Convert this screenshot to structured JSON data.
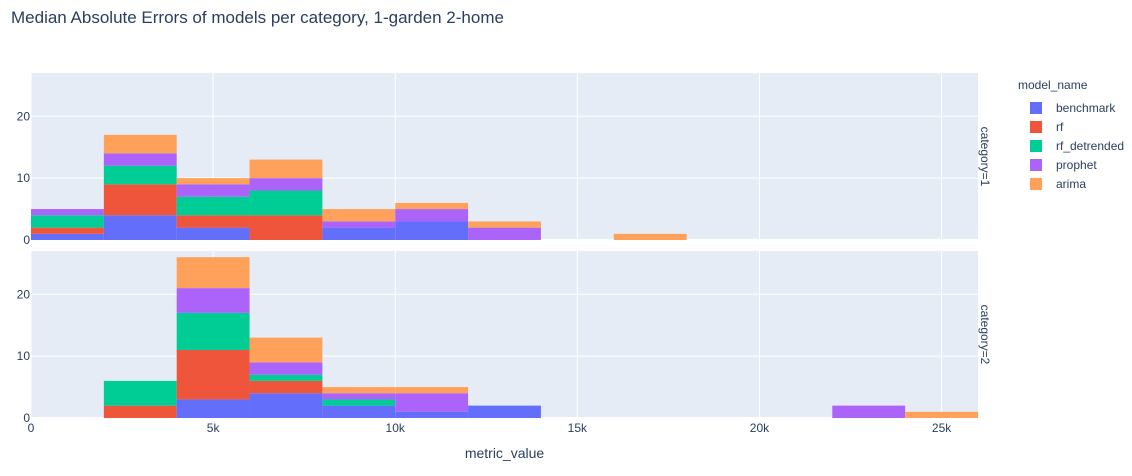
{
  "chart_data": {
    "type": "bar",
    "barmode": "stack",
    "title": "Median Absolute Errors of models per category, 1-garden 2-home",
    "xlabel": "metric_value",
    "ylabel": "",
    "legend_title": "model_name",
    "legend_position": "right",
    "grid": true,
    "bin_size": 2000,
    "xlim": [
      0,
      26000
    ],
    "ylim": [
      0,
      27
    ],
    "x_ticks": [
      {
        "value": 0,
        "label": "0"
      },
      {
        "value": 5000,
        "label": "5k"
      },
      {
        "value": 10000,
        "label": "10k"
      },
      {
        "value": 15000,
        "label": "15k"
      },
      {
        "value": 20000,
        "label": "20k"
      },
      {
        "value": 25000,
        "label": "25k"
      }
    ],
    "y_ticks": [
      {
        "value": 0,
        "label": "0"
      },
      {
        "value": 10,
        "label": "10"
      },
      {
        "value": 20,
        "label": "20"
      }
    ],
    "series": [
      {
        "name": "benchmark",
        "color": "#636efa"
      },
      {
        "name": "rf",
        "color": "#EF553B"
      },
      {
        "name": "rf_detrended",
        "color": "#00cc96"
      },
      {
        "name": "prophet",
        "color": "#ab63fa"
      },
      {
        "name": "arima",
        "color": "#FFA15A"
      }
    ],
    "facets": [
      {
        "label": "category=1",
        "bins": [
          {
            "x0": 0,
            "x1": 2000,
            "counts": [
              1,
              1,
              2,
              1,
              0
            ]
          },
          {
            "x0": 2000,
            "x1": 4000,
            "counts": [
              4,
              5,
              3,
              2,
              3
            ]
          },
          {
            "x0": 4000,
            "x1": 6000,
            "counts": [
              2,
              2,
              3,
              2,
              1
            ]
          },
          {
            "x0": 6000,
            "x1": 8000,
            "counts": [
              0,
              4,
              4,
              2,
              3
            ]
          },
          {
            "x0": 8000,
            "x1": 10000,
            "counts": [
              2,
              0,
              0,
              1,
              2
            ]
          },
          {
            "x0": 10000,
            "x1": 12000,
            "counts": [
              3,
              0,
              0,
              2,
              1
            ]
          },
          {
            "x0": 12000,
            "x1": 14000,
            "counts": [
              0,
              0,
              0,
              2,
              1
            ]
          },
          {
            "x0": 16000,
            "x1": 18000,
            "counts": [
              0,
              0,
              0,
              0,
              1
            ]
          }
        ]
      },
      {
        "label": "category=2",
        "bins": [
          {
            "x0": 2000,
            "x1": 4000,
            "counts": [
              0,
              2,
              4,
              0,
              0
            ]
          },
          {
            "x0": 4000,
            "x1": 6000,
            "counts": [
              3,
              8,
              6,
              4,
              5
            ]
          },
          {
            "x0": 6000,
            "x1": 8000,
            "counts": [
              4,
              2,
              1,
              2,
              4
            ]
          },
          {
            "x0": 8000,
            "x1": 10000,
            "counts": [
              2,
              0,
              1,
              1,
              1
            ]
          },
          {
            "x0": 10000,
            "x1": 12000,
            "counts": [
              1,
              0,
              0,
              3,
              1
            ]
          },
          {
            "x0": 12000,
            "x1": 14000,
            "counts": [
              2,
              0,
              0,
              0,
              0
            ]
          },
          {
            "x0": 22000,
            "x1": 24000,
            "counts": [
              0,
              0,
              0,
              2,
              0
            ]
          },
          {
            "x0": 24000,
            "x1": 26000,
            "counts": [
              0,
              0,
              0,
              0,
              1
            ]
          }
        ]
      }
    ]
  }
}
